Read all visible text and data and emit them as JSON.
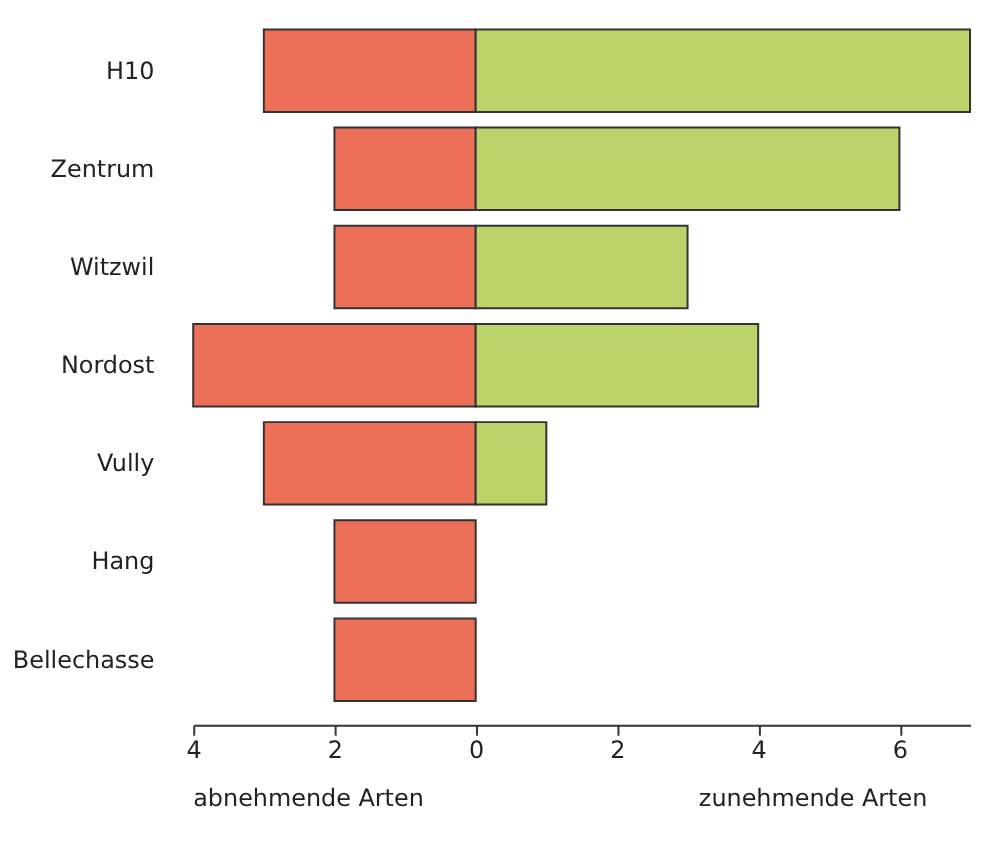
{
  "chart_data": {
    "type": "bar",
    "orientation": "horizontal",
    "stacked": true,
    "categories": [
      "H10",
      "Zentrum",
      "Witzwil",
      "Nordost",
      "Vully",
      "Hang",
      "Bellechasse"
    ],
    "series": [
      {
        "color": "#ec6f58",
        "values": [
          -3,
          -2,
          -2,
          -4,
          -3,
          -2,
          -2
        ]
      },
      {
        "color": "#bcd36a",
        "values": [
          7,
          6,
          3,
          4,
          1,
          null,
          null
        ]
      }
    ],
    "xlim": [
      -4,
      7
    ],
    "xticks": [
      {
        "value": -4,
        "label": "4"
      },
      {
        "value": -2,
        "label": "2"
      },
      0,
      2,
      4,
      6
    ],
    "annotations": [
      "abnehmende Arten",
      "zunehmende Arten"
    ],
    "grid": false,
    "legend": false
  }
}
